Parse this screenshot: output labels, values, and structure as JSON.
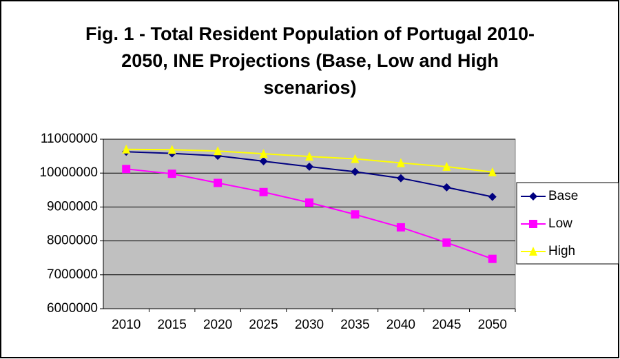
{
  "chart_data": {
    "type": "line",
    "title": "Fig. 1 - Total Resident Population of Portugal 2010-2050, INE Projections (Base, Low and High scenarios)",
    "categories": [
      "2010",
      "2015",
      "2020",
      "2025",
      "2030",
      "2035",
      "2040",
      "2045",
      "2050"
    ],
    "series": [
      {
        "name": "Base",
        "color": "#000080",
        "marker": "diamond",
        "values": [
          10630000,
          10580000,
          10510000,
          10350000,
          10190000,
          10040000,
          9850000,
          9580000,
          9300000
        ]
      },
      {
        "name": "Low",
        "color": "#ff00ff",
        "marker": "square",
        "values": [
          10120000,
          9980000,
          9710000,
          9440000,
          9130000,
          8780000,
          8400000,
          7950000,
          7470000
        ]
      },
      {
        "name": "High",
        "color": "#ffff00",
        "marker": "triangle",
        "values": [
          10700000,
          10690000,
          10650000,
          10570000,
          10490000,
          10420000,
          10300000,
          10190000,
          10030000
        ]
      }
    ],
    "ylim": [
      6000000,
      11000000
    ],
    "yticks": [
      6000000,
      7000000,
      8000000,
      9000000,
      10000000,
      11000000
    ],
    "grid": true,
    "legend": "right",
    "plot_background": "#c0c0c0"
  }
}
